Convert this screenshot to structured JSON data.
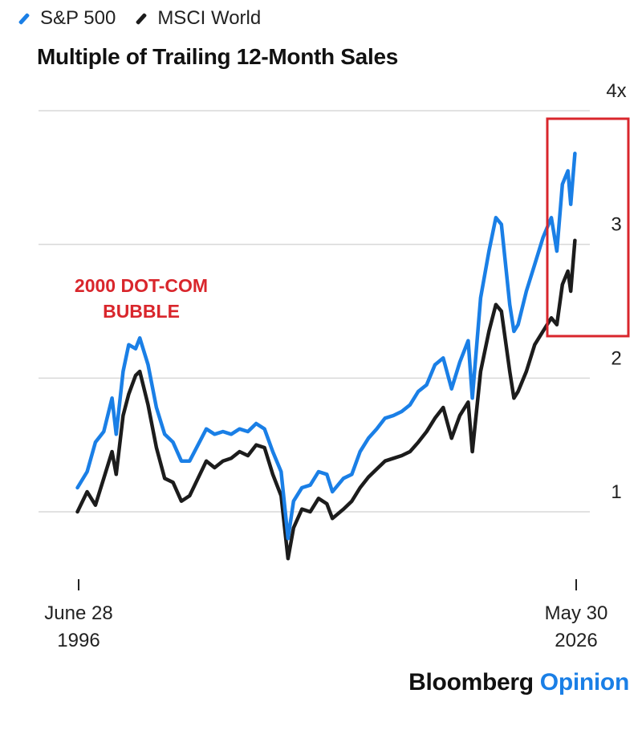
{
  "legend": [
    {
      "label": "S&P 500",
      "color": "#1a7fe6"
    },
    {
      "label": "MSCI World",
      "color": "#1c1c1c"
    }
  ],
  "title": "Multiple of Trailing 12-Month Sales",
  "annotation": {
    "text": [
      "2000 DOT-COM",
      "BUBBLE"
    ],
    "color": "#d9262c",
    "highlight_box_color": "#d9262c"
  },
  "branding": {
    "main": "Bloomberg",
    "accent": "Opinion",
    "accent_color": "#1a7fe6"
  },
  "chart_data": {
    "type": "line",
    "title": "Multiple of Trailing 12-Month Sales",
    "y_ticks": [
      {
        "value": 1,
        "label": "1"
      },
      {
        "value": 2,
        "label": "2"
      },
      {
        "value": 3,
        "label": "3"
      },
      {
        "value": 4,
        "label": "4x"
      }
    ],
    "ylim": [
      0.6,
      4
    ],
    "x_tick_labels": [
      {
        "date": "1996-06-28",
        "lines": [
          "June 28",
          "1996"
        ]
      },
      {
        "date": "2026-05-30",
        "lines": [
          "May 30",
          "2026"
        ]
      }
    ],
    "grid": true,
    "series": [
      {
        "name": "S&P 500",
        "color": "#1a7fe6",
        "points": [
          [
            "1996-06",
            1.18
          ],
          [
            "1997-01",
            1.3
          ],
          [
            "1997-07",
            1.52
          ],
          [
            "1998-01",
            1.6
          ],
          [
            "1998-07",
            1.85
          ],
          [
            "1998-10",
            1.58
          ],
          [
            "1999-03",
            2.05
          ],
          [
            "1999-07",
            2.25
          ],
          [
            "1999-12",
            2.22
          ],
          [
            "2000-03",
            2.3
          ],
          [
            "2000-09",
            2.1
          ],
          [
            "2001-03",
            1.78
          ],
          [
            "2001-09",
            1.58
          ],
          [
            "2002-03",
            1.52
          ],
          [
            "2002-09",
            1.38
          ],
          [
            "2003-03",
            1.38
          ],
          [
            "2003-09",
            1.5
          ],
          [
            "2004-03",
            1.62
          ],
          [
            "2004-09",
            1.58
          ],
          [
            "2005-03",
            1.6
          ],
          [
            "2005-09",
            1.58
          ],
          [
            "2006-03",
            1.62
          ],
          [
            "2006-09",
            1.6
          ],
          [
            "2007-03",
            1.66
          ],
          [
            "2007-09",
            1.62
          ],
          [
            "2008-03",
            1.45
          ],
          [
            "2008-09",
            1.3
          ],
          [
            "2009-02",
            0.8
          ],
          [
            "2009-06",
            1.08
          ],
          [
            "2009-12",
            1.18
          ],
          [
            "2010-06",
            1.2
          ],
          [
            "2010-12",
            1.3
          ],
          [
            "2011-06",
            1.28
          ],
          [
            "2011-10",
            1.15
          ],
          [
            "2012-06",
            1.25
          ],
          [
            "2012-12",
            1.28
          ],
          [
            "2013-06",
            1.45
          ],
          [
            "2013-12",
            1.55
          ],
          [
            "2014-06",
            1.62
          ],
          [
            "2014-12",
            1.7
          ],
          [
            "2015-06",
            1.72
          ],
          [
            "2015-12",
            1.75
          ],
          [
            "2016-06",
            1.8
          ],
          [
            "2016-12",
            1.9
          ],
          [
            "2017-06",
            1.95
          ],
          [
            "2017-12",
            2.1
          ],
          [
            "2018-06",
            2.15
          ],
          [
            "2018-12",
            1.92
          ],
          [
            "2019-06",
            2.12
          ],
          [
            "2019-12",
            2.28
          ],
          [
            "2020-03",
            1.85
          ],
          [
            "2020-09",
            2.6
          ],
          [
            "2021-03",
            2.95
          ],
          [
            "2021-08",
            3.2
          ],
          [
            "2021-12",
            3.15
          ],
          [
            "2022-06",
            2.55
          ],
          [
            "2022-09",
            2.35
          ],
          [
            "2022-12",
            2.4
          ],
          [
            "2023-06",
            2.65
          ],
          [
            "2023-12",
            2.85
          ],
          [
            "2024-06",
            3.05
          ],
          [
            "2024-12",
            3.2
          ],
          [
            "2025-04",
            2.95
          ],
          [
            "2025-08",
            3.45
          ],
          [
            "2025-12",
            3.55
          ],
          [
            "2026-02",
            3.3
          ],
          [
            "2026-05",
            3.68
          ]
        ]
      },
      {
        "name": "MSCI World",
        "color": "#1c1c1c",
        "points": [
          [
            "1996-06",
            1.0
          ],
          [
            "1997-01",
            1.15
          ],
          [
            "1997-07",
            1.05
          ],
          [
            "1998-01",
            1.25
          ],
          [
            "1998-07",
            1.45
          ],
          [
            "1998-10",
            1.28
          ],
          [
            "1999-03",
            1.72
          ],
          [
            "1999-07",
            1.88
          ],
          [
            "1999-12",
            2.02
          ],
          [
            "2000-03",
            2.05
          ],
          [
            "2000-09",
            1.8
          ],
          [
            "2001-03",
            1.48
          ],
          [
            "2001-09",
            1.25
          ],
          [
            "2002-03",
            1.22
          ],
          [
            "2002-09",
            1.08
          ],
          [
            "2003-03",
            1.12
          ],
          [
            "2003-09",
            1.25
          ],
          [
            "2004-03",
            1.38
          ],
          [
            "2004-09",
            1.33
          ],
          [
            "2005-03",
            1.38
          ],
          [
            "2005-09",
            1.4
          ],
          [
            "2006-03",
            1.45
          ],
          [
            "2006-09",
            1.42
          ],
          [
            "2007-03",
            1.5
          ],
          [
            "2007-09",
            1.48
          ],
          [
            "2008-03",
            1.28
          ],
          [
            "2008-09",
            1.12
          ],
          [
            "2009-02",
            0.65
          ],
          [
            "2009-06",
            0.88
          ],
          [
            "2009-12",
            1.02
          ],
          [
            "2010-06",
            1.0
          ],
          [
            "2010-12",
            1.1
          ],
          [
            "2011-06",
            1.06
          ],
          [
            "2011-10",
            0.95
          ],
          [
            "2012-06",
            1.02
          ],
          [
            "2012-12",
            1.08
          ],
          [
            "2013-06",
            1.18
          ],
          [
            "2013-12",
            1.26
          ],
          [
            "2014-06",
            1.32
          ],
          [
            "2014-12",
            1.38
          ],
          [
            "2015-06",
            1.4
          ],
          [
            "2015-12",
            1.42
          ],
          [
            "2016-06",
            1.45
          ],
          [
            "2016-12",
            1.52
          ],
          [
            "2017-06",
            1.6
          ],
          [
            "2017-12",
            1.7
          ],
          [
            "2018-06",
            1.78
          ],
          [
            "2018-12",
            1.55
          ],
          [
            "2019-06",
            1.72
          ],
          [
            "2019-12",
            1.82
          ],
          [
            "2020-03",
            1.45
          ],
          [
            "2020-09",
            2.05
          ],
          [
            "2021-03",
            2.35
          ],
          [
            "2021-08",
            2.55
          ],
          [
            "2021-12",
            2.5
          ],
          [
            "2022-06",
            2.05
          ],
          [
            "2022-09",
            1.85
          ],
          [
            "2022-12",
            1.9
          ],
          [
            "2023-06",
            2.05
          ],
          [
            "2023-12",
            2.25
          ],
          [
            "2024-06",
            2.35
          ],
          [
            "2024-12",
            2.45
          ],
          [
            "2025-04",
            2.4
          ],
          [
            "2025-08",
            2.7
          ],
          [
            "2025-12",
            2.8
          ],
          [
            "2026-02",
            2.65
          ],
          [
            "2026-05",
            3.03
          ]
        ]
      }
    ]
  }
}
